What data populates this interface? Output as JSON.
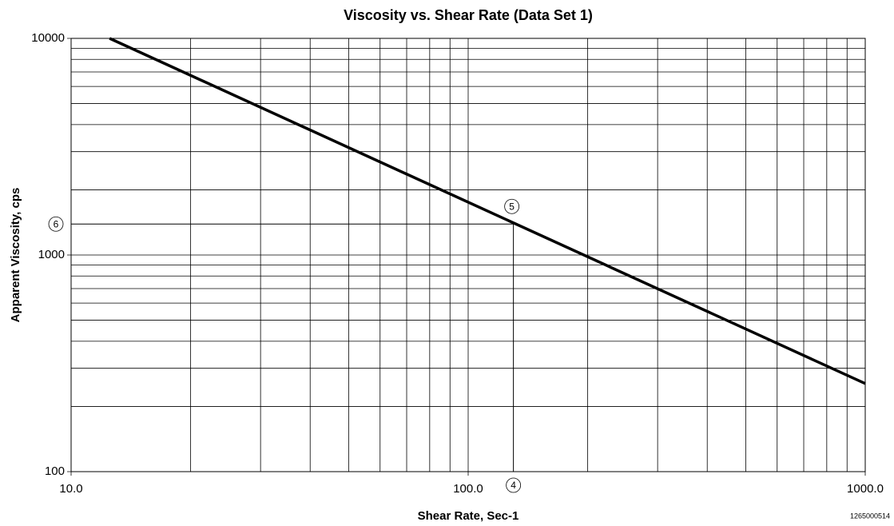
{
  "chart_data": {
    "type": "line",
    "title": "Viscosity vs. Shear Rate (Data Set 1)",
    "xlabel": "Shear Rate, Sec-1",
    "ylabel": "Apparent Viscosity, cps",
    "footnote": "1265000514",
    "log_x": true,
    "log_y": true,
    "grid": true,
    "xlim": [
      10,
      1000
    ],
    "ylim": [
      100,
      10000
    ],
    "xticks": [
      {
        "value": 10,
        "label": "10.0"
      },
      {
        "value": 100,
        "label": "100.0"
      },
      {
        "value": 1000,
        "label": "1000.0"
      }
    ],
    "yticks": [
      100,
      1000,
      10000
    ],
    "x_grid": [
      20,
      30,
      40,
      50,
      60,
      70,
      80,
      90,
      200,
      300,
      400,
      500,
      600,
      700,
      800,
      900
    ],
    "y_grid": [
      200,
      300,
      400,
      500,
      600,
      700,
      800,
      900,
      2000,
      3000,
      4000,
      5000,
      6000,
      7000,
      8000,
      9000
    ],
    "series": [
      {
        "color": "#000000",
        "x": [
          12.5,
          1000
        ],
        "values": [
          10000,
          255
        ]
      }
    ],
    "annotation": {
      "x": 130,
      "y": 1390,
      "x_label": "4",
      "point_label": "5",
      "y_label": "6"
    }
  }
}
